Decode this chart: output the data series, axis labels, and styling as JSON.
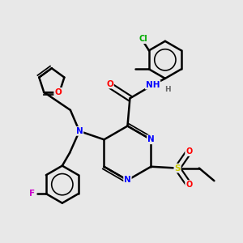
{
  "bg_color": "#e8e8e8",
  "bond_color": "#000000",
  "bond_width": 1.8,
  "atom_colors": {
    "N": "#0000ff",
    "O": "#ff0000",
    "S": "#cccc00",
    "F": "#cc00cc",
    "Cl": "#00aa00",
    "H": "#666666",
    "C": "#000000"
  },
  "figsize": [
    3.0,
    3.0
  ],
  "dpi": 100
}
